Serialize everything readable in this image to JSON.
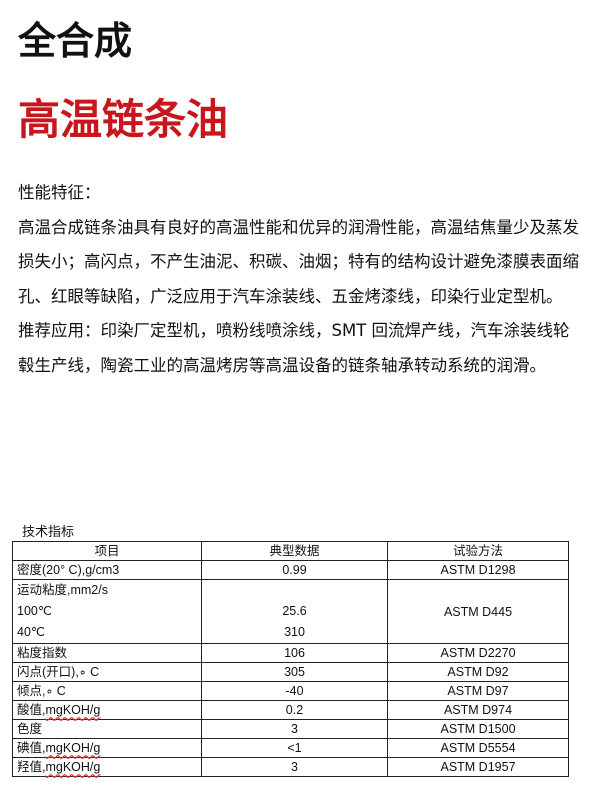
{
  "title": "全合成",
  "subtitle": "高温链条油",
  "features_heading": "性能特征：",
  "features_text": "高温合成链条油具有良好的高温性能和优异的润滑性能，高温结焦量少及蒸发损失小；高闪点，不产生油泥、积碳、油烟；特有的结构设计避免漆膜表面缩孔、红眼等缺陷，广泛应用于汽车涂装线、五金烤漆线，印染行业定型机。",
  "application_text": "推荐应用：印染厂定型机，喷粉线喷涂线，SMT 回流焊产线，汽车涂装线轮毂生产线，陶瓷工业的高温烤房等高温设备的链条轴承转动系统的润滑。",
  "table_caption": "技术指标",
  "table": {
    "headers": [
      "项目",
      "典型数据",
      "试验方法"
    ],
    "rows": [
      {
        "item": "密度(20° C),g/cm3",
        "value": "0.99",
        "method": "ASTM D1298"
      },
      {
        "item": "运动粘度,mm2/s",
        "sub": [
          {
            "item": "100℃",
            "value": "25.6"
          },
          {
            "item": "40℃",
            "value": "310"
          }
        ],
        "method": "ASTM D445"
      },
      {
        "item": "粘度指数",
        "value": "106",
        "method": "ASTM D2270"
      },
      {
        "item": "闪点(开口),∘ C",
        "value": "305",
        "method": "ASTM D92"
      },
      {
        "item": "倾点,∘ C",
        "value": "-40",
        "method": "ASTM D97"
      },
      {
        "item_cn": "酸值,",
        "item_unit": "mgKOH/g",
        "value": "0.2",
        "method": "ASTM D974"
      },
      {
        "item": "色度",
        "value": "3",
        "method": "ASTM D1500"
      },
      {
        "item_cn": "碘值,",
        "item_unit": "mgKOH/g",
        "value": "<1",
        "method": "ASTM D5554"
      },
      {
        "item_cn": "羟值,",
        "item_unit": "mgKOH/g",
        "value": "3",
        "method": "ASTM D1957"
      }
    ]
  }
}
